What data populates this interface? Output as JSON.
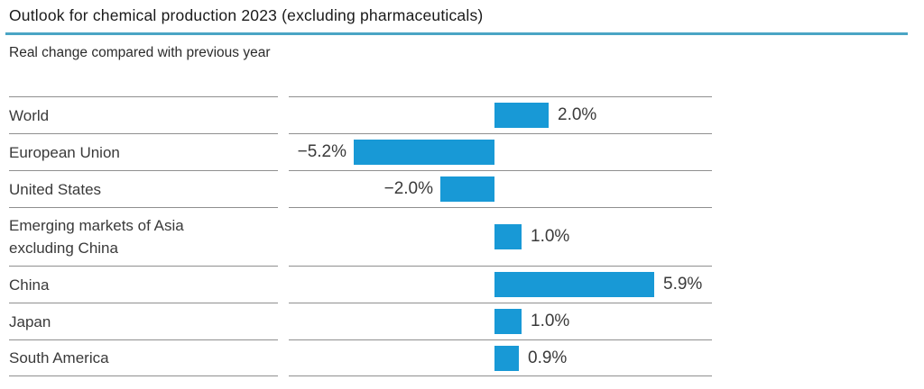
{
  "header": {
    "title": "Outlook for chemical production 2023 (excluding pharmaceuticals)",
    "subtitle": "Real change compared with previous year"
  },
  "chart_data": {
    "type": "bar",
    "orientation": "horizontal",
    "title": "Outlook for chemical production 2023 (excluding pharmaceuticals)",
    "subtitle": "Real change compared with previous year",
    "unit": "%",
    "categories": [
      "World",
      "European Union",
      "United States",
      "Emerging markets of Asia excluding China",
      "China",
      "Japan",
      "South America"
    ],
    "values": [
      2.0,
      -5.2,
      -2.0,
      1.0,
      5.9,
      1.0,
      0.9
    ],
    "value_labels": [
      "2.0%",
      "−5.2%",
      "−2.0%",
      "1.0%",
      "5.9%",
      "1.0%",
      "0.9%"
    ],
    "bar_color": "#1899d6",
    "xlim": [
      -7.6,
      8.0
    ],
    "grid": "row-separator-rules-only",
    "legend": "none",
    "value_label_position": "outside-end-of-bar"
  },
  "colors": {
    "bar": "#1899d6",
    "title_divider": "#4aa5c5",
    "rule_gray": "#8f8f8f",
    "title_text": "#1a1a1a",
    "body_text": "#3a3a3a"
  }
}
